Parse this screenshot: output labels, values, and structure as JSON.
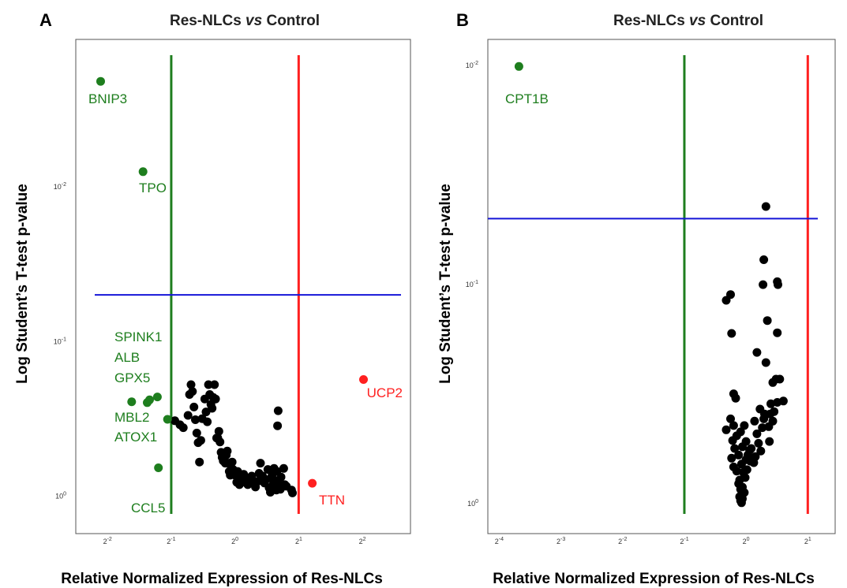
{
  "colors": {
    "green": "#1e7e1e",
    "red": "#ff2020",
    "blue": "#1515d8",
    "point": "#000000",
    "frame": "#555555"
  },
  "chart_data": [
    {
      "panel": "A",
      "type": "scatter",
      "title_parts": [
        "Res-NLCs ",
        "vs",
        " Control"
      ],
      "xlabel": "Relative Normalized Expression of Res-NLCs",
      "ylabel": "Log Student’s T-test p-value",
      "x_scale": "log2",
      "y_scale": "log10-reversed",
      "xlim": [
        0.177,
        6.75
      ],
      "ylim": [
        1.74,
        0.00112
      ],
      "x_ticks": [
        {
          "base": "2",
          "exp": "-2"
        },
        {
          "base": "2",
          "exp": "-1"
        },
        {
          "base": "2",
          "exp": "0"
        },
        {
          "base": "2",
          "exp": "1"
        },
        {
          "base": "2",
          "exp": "2"
        }
      ],
      "x_tick_values": [
        0.25,
        0.5,
        1,
        2,
        4
      ],
      "y_ticks": [
        {
          "base": "10",
          "exp": "-2"
        },
        {
          "base": "10",
          "exp": "-1"
        },
        {
          "base": "10",
          "exp": "0"
        }
      ],
      "y_tick_values": [
        0.01,
        0.1,
        1
      ],
      "threshold_lines": {
        "vertical_green": 0.5,
        "vertical_red": 2,
        "horizontal_blue": 0.05
      },
      "labeled_points": [
        {
          "label": "BNIP3",
          "x": 0.232,
          "y": 0.00209,
          "group": "down"
        },
        {
          "label": "TPO",
          "x": 0.368,
          "y": 0.008,
          "group": "down"
        },
        {
          "label": "CCL5",
          "x": 0.435,
          "y": 0.654,
          "group": "down"
        },
        {
          "label": "UCP2",
          "x": 4.05,
          "y": 0.176,
          "group": "up"
        },
        {
          "label": "TTN",
          "x": 2.32,
          "y": 0.823,
          "group": "up"
        }
      ],
      "group_points": [
        {
          "x": 0.325,
          "y": 0.245,
          "group": "down"
        },
        {
          "x": 0.385,
          "y": 0.248,
          "group": "down"
        },
        {
          "x": 0.395,
          "y": 0.238,
          "group": "down"
        },
        {
          "x": 0.43,
          "y": 0.228,
          "group": "down"
        },
        {
          "x": 0.48,
          "y": 0.318,
          "group": "down"
        }
      ],
      "group_labels": [
        "SPINK1",
        "ALB",
        "GPX5",
        "MBL2",
        "ATOX1"
      ],
      "points": [
        [
          0.52,
          0.325
        ],
        [
          0.55,
          0.345
        ],
        [
          0.57,
          0.36
        ],
        [
          0.6,
          0.3
        ],
        [
          0.61,
          0.22
        ],
        [
          0.62,
          0.19
        ],
        [
          0.63,
          0.21
        ],
        [
          0.64,
          0.265
        ],
        [
          0.65,
          0.32
        ],
        [
          0.66,
          0.39
        ],
        [
          0.67,
          0.45
        ],
        [
          0.68,
          0.6
        ],
        [
          0.69,
          0.435
        ],
        [
          0.7,
          0.315
        ],
        [
          0.72,
          0.235
        ],
        [
          0.73,
          0.285
        ],
        [
          0.74,
          0.33
        ],
        [
          0.75,
          0.19
        ],
        [
          0.76,
          0.22
        ],
        [
          0.77,
          0.255
        ],
        [
          0.78,
          0.27
        ],
        [
          0.79,
          0.23
        ],
        [
          0.8,
          0.19
        ],
        [
          0.81,
          0.235
        ],
        [
          0.82,
          0.42
        ],
        [
          0.83,
          0.42
        ],
        [
          0.84,
          0.38
        ],
        [
          0.85,
          0.445
        ],
        [
          0.86,
          0.52
        ],
        [
          0.87,
          0.56
        ],
        [
          0.88,
          0.59
        ],
        [
          0.9,
          0.61
        ],
        [
          0.91,
          0.54
        ],
        [
          0.92,
          0.51
        ],
        [
          0.93,
          0.61
        ],
        [
          0.94,
          0.69
        ],
        [
          0.95,
          0.73
        ],
        [
          0.97,
          0.6
        ],
        [
          0.98,
          0.67
        ],
        [
          1.0,
          0.73
        ],
        [
          1.02,
          0.81
        ],
        [
          1.03,
          0.69
        ],
        [
          1.05,
          0.84
        ],
        [
          1.06,
          0.76
        ],
        [
          1.08,
          0.75
        ],
        [
          1.1,
          0.72
        ],
        [
          1.12,
          0.81
        ],
        [
          1.15,
          0.84
        ],
        [
          1.17,
          0.78
        ],
        [
          1.2,
          0.74
        ],
        [
          1.22,
          0.82
        ],
        [
          1.25,
          0.87
        ],
        [
          1.28,
          0.8
        ],
        [
          1.3,
          0.71
        ],
        [
          1.32,
          0.61
        ],
        [
          1.35,
          0.74
        ],
        [
          1.38,
          0.82
        ],
        [
          1.4,
          0.78
        ],
        [
          1.43,
          0.67
        ],
        [
          1.45,
          0.88
        ],
        [
          1.47,
          0.94
        ],
        [
          1.48,
          0.76
        ],
        [
          1.5,
          0.72
        ],
        [
          1.52,
          0.83
        ],
        [
          1.53,
          0.66
        ],
        [
          1.55,
          0.79
        ],
        [
          1.56,
          0.89
        ],
        [
          1.57,
          0.91
        ],
        [
          1.58,
          0.69
        ],
        [
          1.59,
          0.35
        ],
        [
          1.6,
          0.28
        ],
        [
          1.62,
          0.84
        ],
        [
          1.64,
          0.9
        ],
        [
          1.65,
          0.75
        ],
        [
          1.7,
          0.66
        ],
        [
          1.72,
          0.84
        ],
        [
          1.75,
          0.86
        ],
        [
          1.85,
          0.91
        ],
        [
          1.87,
          0.95
        ]
      ]
    },
    {
      "panel": "B",
      "type": "scatter",
      "title_parts": [
        "Res-NLCs ",
        "vs",
        " Control"
      ],
      "xlabel": "Relative Normalized Expression of Res-NLCs",
      "ylabel": "Log Student’s T-test p-value",
      "x_scale": "log2",
      "y_scale": "log10-reversed",
      "xlim": [
        0.055,
        2.72
      ],
      "ylim": [
        1.37,
        0.0076
      ],
      "x_ticks": [
        {
          "base": "2",
          "exp": "-4"
        },
        {
          "base": "2",
          "exp": "-3"
        },
        {
          "base": "2",
          "exp": "-2"
        },
        {
          "base": "2",
          "exp": "-1"
        },
        {
          "base": "2",
          "exp": "0"
        },
        {
          "base": "2",
          "exp": "1"
        }
      ],
      "x_tick_values": [
        0.0625,
        0.125,
        0.25,
        0.5,
        1,
        2
      ],
      "y_ticks": [
        {
          "base": "10",
          "exp": "-2"
        },
        {
          "base": "10",
          "exp": "-1"
        },
        {
          "base": "10",
          "exp": "0"
        }
      ],
      "y_tick_values": [
        0.01,
        0.1,
        1
      ],
      "threshold_lines": {
        "vertical_green": 0.5,
        "vertical_red": 2,
        "horizontal_blue": 0.05
      },
      "labeled_points": [
        {
          "label": "CPT1B",
          "x": 0.078,
          "y": 0.0101,
          "group": "down"
        }
      ],
      "points": [
        [
          1.25,
          0.044
        ],
        [
          1.22,
          0.077
        ],
        [
          1.21,
          0.1
        ],
        [
          1.42,
          0.097
        ],
        [
          1.43,
          0.1
        ],
        [
          1.27,
          0.146
        ],
        [
          0.8,
          0.118
        ],
        [
          0.84,
          0.111
        ],
        [
          1.42,
          0.166
        ],
        [
          0.85,
          0.167
        ],
        [
          1.13,
          0.204
        ],
        [
          1.25,
          0.227
        ],
        [
          0.87,
          0.315
        ],
        [
          0.89,
          0.33
        ],
        [
          1.35,
          0.28
        ],
        [
          1.4,
          0.27
        ],
        [
          1.46,
          0.27
        ],
        [
          1.37,
          0.38
        ],
        [
          1.42,
          0.345
        ],
        [
          1.32,
          0.35
        ],
        [
          1.52,
          0.34
        ],
        [
          0.8,
          0.46
        ],
        [
          1.29,
          0.445
        ],
        [
          1.31,
          0.39
        ],
        [
          0.84,
          0.41
        ],
        [
          0.87,
          0.44
        ],
        [
          1.23,
          0.39
        ],
        [
          1.22,
          0.41
        ],
        [
          1.17,
          0.37
        ],
        [
          1.1,
          0.42
        ],
        [
          1.35,
          0.42
        ],
        [
          1.2,
          0.45
        ],
        [
          1.13,
          0.48
        ],
        [
          1.3,
          0.52
        ],
        [
          0.86,
          0.515
        ],
        [
          0.9,
          0.49
        ],
        [
          0.94,
          0.47
        ],
        [
          0.98,
          0.44
        ],
        [
          0.88,
          0.56
        ],
        [
          1.04,
          0.57
        ],
        [
          1.15,
          0.53
        ],
        [
          0.85,
          0.62
        ],
        [
          0.92,
          0.6
        ],
        [
          0.96,
          0.55
        ],
        [
          1.0,
          0.52
        ],
        [
          1.02,
          0.6
        ],
        [
          1.06,
          0.56
        ],
        [
          1.11,
          0.61
        ],
        [
          1.18,
          0.575
        ],
        [
          1.09,
          0.65
        ],
        [
          0.87,
          0.68
        ],
        [
          0.95,
          0.66
        ],
        [
          1.0,
          0.63
        ],
        [
          1.05,
          0.64
        ],
        [
          0.9,
          0.71
        ],
        [
          0.97,
          0.72
        ],
        [
          1.01,
          0.7
        ],
        [
          0.93,
          0.78
        ],
        [
          0.99,
          0.76
        ],
        [
          0.92,
          0.81
        ],
        [
          0.96,
          0.84
        ],
        [
          0.94,
          0.86
        ],
        [
          0.98,
          0.89
        ],
        [
          0.95,
          0.91
        ],
        [
          0.93,
          0.93
        ],
        [
          0.96,
          0.95
        ],
        [
          0.94,
          0.97
        ],
        [
          0.95,
          0.99
        ]
      ]
    }
  ]
}
